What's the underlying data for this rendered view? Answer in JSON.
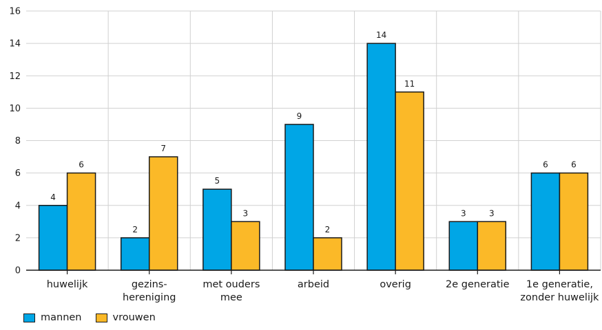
{
  "chart_data": {
    "type": "bar",
    "categories": [
      [
        "huwelijk"
      ],
      [
        "gezins-",
        "hereniging"
      ],
      [
        "met ouders",
        "mee"
      ],
      [
        "arbeid"
      ],
      [
        "overig"
      ],
      [
        "2e generatie"
      ],
      [
        "1e generatie,",
        "zonder huwelijk"
      ]
    ],
    "series": [
      {
        "name": "mannen",
        "color": "#00a6e6",
        "values": [
          4,
          2,
          5,
          9,
          14,
          3,
          6
        ]
      },
      {
        "name": "vrouwen",
        "color": "#fbb928",
        "values": [
          6,
          7,
          3,
          2,
          11,
          3,
          6
        ]
      }
    ],
    "ylim": [
      0,
      16
    ],
    "yticks": [
      0,
      2,
      4,
      6,
      8,
      10,
      12,
      14,
      16
    ],
    "grid": true,
    "legend": "bottom-left"
  }
}
